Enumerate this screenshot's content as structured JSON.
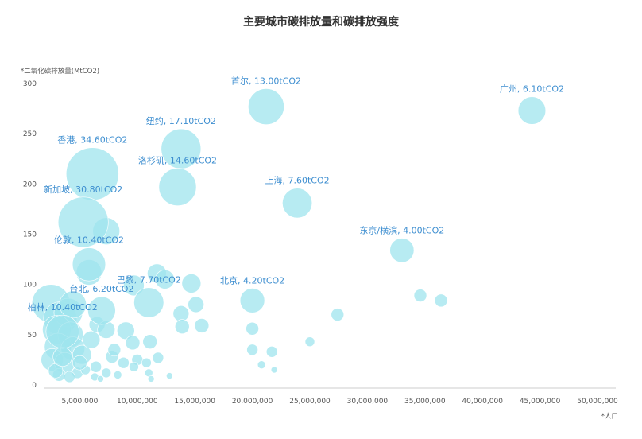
{
  "chart_data": {
    "type": "scatter",
    "title": "主要城市碳排放量和碳排放强度",
    "ylabel": "*二氧化碳排放量(MtCO2)",
    "xlabel": "*人口",
    "xlim": [
      0,
      50000000
    ],
    "ylim": [
      0,
      300
    ],
    "x_ticks": [
      "5,000,000",
      "10,000,000",
      "15,000,000",
      "20,000,000",
      "25,000,000",
      "30,000,000",
      "35,000,000",
      "40,000,000",
      "45,000,000",
      "50,000,000"
    ],
    "y_ticks": [
      "0",
      "50",
      "100",
      "150",
      "200",
      "250",
      "300"
    ],
    "bubble_color": "#9fe4ee",
    "label_color": "#3d8ed0",
    "labeled_points": [
      {
        "label": "首尔, 13.00tCO2",
        "x": 21200000,
        "y": 277,
        "intensity": 13.0
      },
      {
        "label": "广州, 6.10tCO2",
        "x": 44300000,
        "y": 273,
        "intensity": 6.1
      },
      {
        "label": "纽约, 17.10tCO2",
        "x": 13800000,
        "y": 235,
        "intensity": 17.1
      },
      {
        "label": "香港, 34.60tCO2",
        "x": 6100000,
        "y": 210,
        "intensity": 34.6
      },
      {
        "label": "洛杉矶, 14.60tCO2",
        "x": 13500000,
        "y": 197,
        "intensity": 14.6
      },
      {
        "label": "上海, 7.60tCO2",
        "x": 23900000,
        "y": 181,
        "intensity": 7.6
      },
      {
        "label": "新加坡, 30.80tCO2",
        "x": 5300000,
        "y": 162,
        "intensity": 30.8
      },
      {
        "label": "东京/横滨, 4.00tCO2",
        "x": 33000000,
        "y": 134,
        "intensity": 4.0
      },
      {
        "label": "伦敦, 10.40tCO2",
        "x": 5800000,
        "y": 120,
        "intensity": 10.4
      },
      {
        "label": "北京, 4.20tCO2",
        "x": 20000000,
        "y": 84,
        "intensity": 4.2
      },
      {
        "label": "巴黎, 7.70tCO2",
        "x": 11000000,
        "y": 82,
        "intensity": 7.7
      },
      {
        "label": "台北, 6.20tCO2",
        "x": 6900000,
        "y": 74,
        "intensity": 6.2
      },
      {
        "label": "柏林, 10.40tCO2",
        "x": 3500000,
        "y": 53,
        "intensity": 10.4
      }
    ],
    "other_points": [
      {
        "x": 7300000,
        "y": 153,
        "size": 17
      },
      {
        "x": 5800000,
        "y": 112,
        "size": 16
      },
      {
        "x": 9700000,
        "y": 99,
        "size": 13
      },
      {
        "x": 11700000,
        "y": 111,
        "size": 12
      },
      {
        "x": 12400000,
        "y": 105,
        "size": 12
      },
      {
        "x": 14700000,
        "y": 101,
        "size": 12
      },
      {
        "x": 15100000,
        "y": 80,
        "size": 10
      },
      {
        "x": 13800000,
        "y": 71,
        "size": 10
      },
      {
        "x": 15600000,
        "y": 59,
        "size": 9
      },
      {
        "x": 13900000,
        "y": 58,
        "size": 9
      },
      {
        "x": 27400000,
        "y": 70,
        "size": 8
      },
      {
        "x": 34600000,
        "y": 89,
        "size": 8
      },
      {
        "x": 36400000,
        "y": 84,
        "size": 8
      },
      {
        "x": 20000000,
        "y": 56,
        "size": 8
      },
      {
        "x": 20000000,
        "y": 35,
        "size": 7
      },
      {
        "x": 21700000,
        "y": 33,
        "size": 7
      },
      {
        "x": 25000000,
        "y": 43,
        "size": 6
      },
      {
        "x": 20800000,
        "y": 20,
        "size": 5
      },
      {
        "x": 21900000,
        "y": 15,
        "size": 4
      },
      {
        "x": 2500000,
        "y": 81,
        "size": 24
      },
      {
        "x": 3300000,
        "y": 66,
        "size": 21
      },
      {
        "x": 4000000,
        "y": 72,
        "size": 18
      },
      {
        "x": 4400000,
        "y": 80,
        "size": 17
      },
      {
        "x": 3000000,
        "y": 55,
        "size": 18
      },
      {
        "x": 4200000,
        "y": 50,
        "size": 16
      },
      {
        "x": 3100000,
        "y": 38,
        "size": 17
      },
      {
        "x": 4400000,
        "y": 36,
        "size": 15
      },
      {
        "x": 2600000,
        "y": 25,
        "size": 14
      },
      {
        "x": 3700000,
        "y": 22,
        "size": 13
      },
      {
        "x": 5200000,
        "y": 30,
        "size": 12
      },
      {
        "x": 6000000,
        "y": 45,
        "size": 11
      },
      {
        "x": 6500000,
        "y": 60,
        "size": 10
      },
      {
        "x": 7300000,
        "y": 55,
        "size": 11
      },
      {
        "x": 9000000,
        "y": 54,
        "size": 11
      },
      {
        "x": 9600000,
        "y": 42,
        "size": 9
      },
      {
        "x": 11100000,
        "y": 43,
        "size": 9
      },
      {
        "x": 7800000,
        "y": 28,
        "size": 8
      },
      {
        "x": 8800000,
        "y": 22,
        "size": 7
      },
      {
        "x": 10000000,
        "y": 25,
        "size": 7
      },
      {
        "x": 11800000,
        "y": 27,
        "size": 7
      },
      {
        "x": 6400000,
        "y": 18,
        "size": 7
      },
      {
        "x": 7300000,
        "y": 12,
        "size": 6
      },
      {
        "x": 9700000,
        "y": 18,
        "size": 6
      },
      {
        "x": 10800000,
        "y": 22,
        "size": 6
      },
      {
        "x": 3200000,
        "y": 10,
        "size": 8
      },
      {
        "x": 4800000,
        "y": 12,
        "size": 7
      },
      {
        "x": 5500000,
        "y": 15,
        "size": 6
      },
      {
        "x": 6300000,
        "y": 8,
        "size": 5
      },
      {
        "x": 8300000,
        "y": 10,
        "size": 5
      },
      {
        "x": 11000000,
        "y": 12,
        "size": 5
      },
      {
        "x": 11200000,
        "y": 6,
        "size": 4
      },
      {
        "x": 12800000,
        "y": 9,
        "size": 4
      },
      {
        "x": 2900000,
        "y": 14,
        "size": 9
      },
      {
        "x": 4100000,
        "y": 8,
        "size": 7
      },
      {
        "x": 3500000,
        "y": 28,
        "size": 12
      },
      {
        "x": 5000000,
        "y": 22,
        "size": 9
      },
      {
        "x": 8000000,
        "y": 35,
        "size": 8
      },
      {
        "x": 6800000,
        "y": 6,
        "size": 4
      }
    ]
  }
}
